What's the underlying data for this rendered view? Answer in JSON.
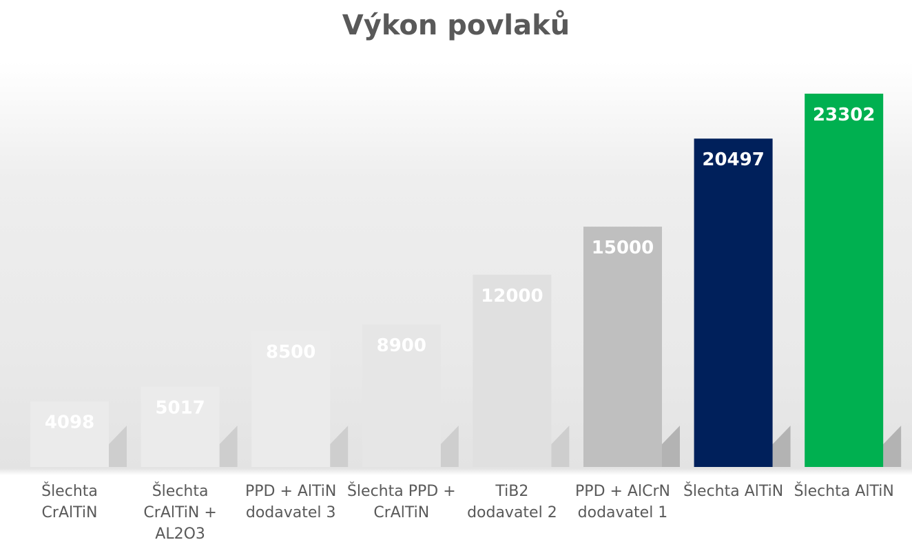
{
  "chart_data": {
    "type": "bar",
    "title": "Výkon povlaků",
    "categories": [
      [
        "Šlechta",
        "CrAlTiN"
      ],
      [
        "Šlechta",
        "CrAlTiN +",
        "AL2O3"
      ],
      [
        "PPD + AlTiN",
        "dodavatel 3"
      ],
      [
        "Šlechta PPD +",
        "CrAlTiN"
      ],
      [
        "TiB2",
        "dodavatel 2"
      ],
      [
        "PPD + AlCrN",
        "dodavatel 1"
      ],
      [
        "Šlechta AlTiN"
      ],
      [
        "Šlechta AlTiN"
      ]
    ],
    "values": [
      4098,
      5017,
      8500,
      8900,
      12000,
      15000,
      20497,
      23302
    ],
    "bar_colors": [
      "#ebebeb",
      "#ebebeb",
      "#ebebeb",
      "#e6e6e6",
      "#e0e0e0",
      "#bfbfbf",
      "#00205b",
      "#00b050"
    ],
    "label_color": "#ffffff",
    "xlabel": "",
    "ylabel": "",
    "ylim": [
      0,
      23302
    ],
    "grid": false,
    "legend": "none"
  }
}
